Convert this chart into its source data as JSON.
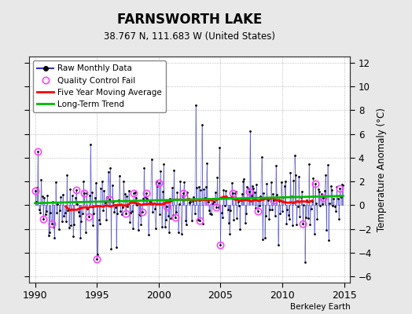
{
  "title": "FARNSWORTH LAKE",
  "subtitle": "38.767 N, 111.683 W (United States)",
  "ylabel_right": "Temperature Anomaly (°C)",
  "watermark": "Berkeley Earth",
  "xlim": [
    1989.5,
    2015.5
  ],
  "ylim": [
    -6.5,
    12.5
  ],
  "yticks": [
    -6,
    -4,
    -2,
    0,
    2,
    4,
    6,
    8,
    10,
    12
  ],
  "xticks": [
    1990,
    1995,
    2000,
    2005,
    2010,
    2015
  ],
  "fig_bg_color": "#e8e8e8",
  "plot_bg_color": "#ffffff",
  "raw_line_color": "#3333bb",
  "raw_marker_color": "#000000",
  "qc_fail_color": "#ff44ff",
  "moving_avg_color": "#ff0000",
  "trend_color": "#00bb00",
  "seed": 42,
  "start_year": 1990,
  "n_months": 300
}
